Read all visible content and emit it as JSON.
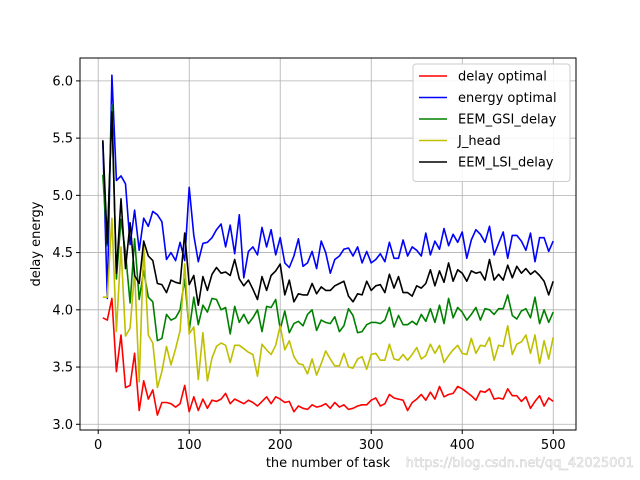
{
  "chart_data": {
    "type": "line",
    "title": "",
    "xlabel": "the number of task",
    "ylabel": "delay energy",
    "xlim": [
      -20,
      525
    ],
    "ylim": [
      2.95,
      6.2
    ],
    "xticks": [
      0,
      100,
      200,
      300,
      400,
      500
    ],
    "yticks": [
      3.0,
      3.5,
      4.0,
      4.5,
      5.0,
      5.5,
      6.0
    ],
    "grid": true,
    "legend_position": "top-right",
    "x": [
      5,
      10,
      15,
      20,
      25,
      30,
      35,
      40,
      45,
      50,
      55,
      60,
      65,
      70,
      75,
      80,
      85,
      90,
      95,
      100,
      105,
      110,
      115,
      120,
      125,
      130,
      135,
      140,
      145,
      150,
      155,
      160,
      165,
      170,
      175,
      180,
      185,
      190,
      195,
      200,
      205,
      210,
      215,
      220,
      225,
      230,
      235,
      240,
      245,
      250,
      255,
      260,
      265,
      270,
      275,
      280,
      285,
      290,
      295,
      300,
      305,
      310,
      315,
      320,
      325,
      330,
      335,
      340,
      345,
      350,
      355,
      360,
      365,
      370,
      375,
      380,
      385,
      390,
      395,
      400,
      405,
      410,
      415,
      420,
      425,
      430,
      435,
      440,
      445,
      450,
      455,
      460,
      465,
      470,
      475,
      480,
      485,
      490,
      495,
      500
    ],
    "series": [
      {
        "name": "delay optimal",
        "color": "#ff0000",
        "values": [
          3.93,
          3.91,
          4.1,
          3.46,
          3.78,
          3.32,
          3.34,
          3.62,
          3.12,
          3.38,
          3.22,
          3.3,
          3.08,
          3.19,
          3.19,
          3.18,
          3.15,
          3.18,
          3.34,
          3.11,
          3.24,
          3.12,
          3.22,
          3.14,
          3.21,
          3.2,
          3.22,
          3.27,
          3.18,
          3.22,
          3.2,
          3.18,
          3.21,
          3.19,
          3.16,
          3.2,
          3.24,
          3.18,
          3.24,
          3.22,
          3.19,
          3.2,
          3.11,
          3.16,
          3.14,
          3.13,
          3.17,
          3.15,
          3.16,
          3.18,
          3.14,
          3.19,
          3.15,
          3.17,
          3.13,
          3.14,
          3.16,
          3.17,
          3.17,
          3.21,
          3.23,
          3.16,
          3.18,
          3.26,
          3.23,
          3.22,
          3.21,
          3.12,
          3.19,
          3.22,
          3.26,
          3.21,
          3.28,
          3.22,
          3.33,
          3.24,
          3.26,
          3.27,
          3.33,
          3.31,
          3.28,
          3.25,
          3.21,
          3.29,
          3.28,
          3.31,
          3.22,
          3.23,
          3.22,
          3.31,
          3.25,
          3.25,
          3.2,
          3.24,
          3.14,
          3.2,
          3.25,
          3.16,
          3.23,
          3.2
        ]
      },
      {
        "name": "energy optimal",
        "color": "#0000ff",
        "values": [
          5.48,
          4.1,
          6.05,
          5.13,
          5.17,
          5.1,
          4.57,
          4.87,
          4.52,
          4.8,
          4.73,
          4.86,
          4.83,
          4.77,
          4.44,
          4.5,
          4.43,
          4.59,
          4.43,
          5.07,
          4.65,
          4.42,
          4.58,
          4.59,
          4.63,
          4.7,
          4.75,
          4.55,
          4.74,
          4.49,
          4.83,
          4.28,
          4.51,
          4.55,
          4.48,
          4.72,
          4.55,
          4.7,
          4.48,
          4.63,
          4.41,
          4.37,
          4.47,
          4.62,
          4.38,
          4.41,
          4.51,
          4.36,
          4.6,
          4.5,
          4.32,
          4.44,
          4.47,
          4.53,
          4.54,
          4.47,
          4.55,
          4.41,
          4.51,
          4.41,
          4.44,
          4.49,
          4.42,
          4.59,
          4.45,
          4.45,
          4.61,
          4.47,
          4.55,
          4.52,
          4.47,
          4.67,
          4.48,
          4.6,
          4.53,
          4.71,
          4.56,
          4.66,
          4.59,
          4.68,
          4.45,
          4.61,
          4.7,
          4.66,
          4.59,
          4.73,
          4.48,
          4.58,
          4.68,
          4.45,
          4.65,
          4.65,
          4.6,
          4.52,
          4.67,
          4.42,
          4.63,
          4.63,
          4.51,
          4.6
        ]
      },
      {
        "name": "EEM_GSI_delay",
        "color": "#008000",
        "values": [
          5.18,
          4.56,
          5.79,
          4.27,
          4.79,
          4.5,
          4.06,
          4.62,
          4.09,
          4.34,
          4.11,
          4.07,
          3.73,
          3.75,
          3.96,
          3.91,
          3.93,
          4.0,
          4.27,
          3.82,
          4.11,
          3.87,
          4.04,
          3.98,
          4.1,
          4.09,
          4.0,
          4.02,
          3.79,
          4.03,
          3.89,
          3.96,
          3.88,
          3.93,
          4.0,
          3.81,
          4.03,
          4.02,
          4.09,
          3.83,
          3.99,
          3.8,
          3.88,
          3.9,
          3.86,
          3.96,
          4.0,
          3.82,
          3.91,
          3.89,
          3.88,
          3.94,
          3.81,
          3.86,
          4.01,
          3.95,
          3.8,
          3.81,
          3.87,
          3.89,
          3.89,
          3.88,
          3.91,
          4.02,
          3.85,
          3.95,
          3.87,
          3.87,
          3.9,
          3.87,
          3.96,
          3.9,
          4.01,
          3.89,
          4.04,
          3.88,
          4.1,
          3.93,
          4.02,
          3.98,
          3.91,
          3.96,
          4.02,
          3.91,
          4.01,
          4.0,
          3.96,
          4.01,
          4.01,
          4.13,
          3.95,
          3.92,
          3.99,
          4.01,
          3.93,
          4.11,
          3.88,
          4.0,
          3.89,
          3.98
        ]
      },
      {
        "name": "J_head",
        "color": "#bfbf00",
        "values": [
          4.11,
          4.11,
          4.8,
          3.81,
          4.55,
          3.77,
          3.84,
          4.34,
          3.37,
          4.56,
          3.78,
          3.71,
          3.32,
          3.46,
          3.68,
          3.52,
          3.66,
          3.82,
          4.4,
          3.79,
          3.85,
          3.39,
          3.8,
          3.38,
          3.58,
          3.68,
          3.71,
          3.69,
          3.54,
          3.69,
          3.69,
          3.66,
          3.63,
          3.61,
          3.42,
          3.7,
          3.65,
          3.61,
          3.69,
          3.86,
          3.65,
          3.73,
          3.59,
          3.53,
          3.52,
          3.44,
          3.57,
          3.43,
          3.53,
          3.64,
          3.57,
          3.51,
          3.51,
          3.62,
          3.5,
          3.49,
          3.57,
          3.59,
          3.48,
          3.61,
          3.62,
          3.56,
          3.56,
          3.7,
          3.57,
          3.56,
          3.61,
          3.56,
          3.61,
          3.67,
          3.57,
          3.6,
          3.7,
          3.62,
          3.69,
          3.54,
          3.6,
          3.65,
          3.69,
          3.62,
          3.61,
          3.75,
          3.62,
          3.69,
          3.68,
          3.76,
          3.56,
          3.69,
          3.68,
          3.86,
          3.61,
          3.7,
          3.72,
          3.78,
          3.62,
          3.78,
          3.53,
          3.73,
          3.57,
          3.76
        ]
      },
      {
        "name": "EEM_LSI_delay",
        "color": "#000000",
        "values": [
          5.48,
          4.58,
          5.73,
          4.32,
          4.97,
          4.36,
          4.76,
          4.3,
          4.23,
          4.6,
          4.47,
          4.43,
          4.23,
          4.22,
          4.15,
          4.26,
          4.24,
          4.23,
          4.67,
          4.22,
          4.3,
          4.04,
          4.29,
          4.17,
          4.31,
          4.37,
          4.32,
          4.33,
          4.3,
          4.44,
          4.27,
          4.21,
          4.26,
          4.18,
          4.09,
          4.29,
          4.17,
          4.3,
          4.34,
          4.4,
          4.13,
          4.26,
          4.07,
          4.14,
          4.13,
          4.13,
          4.23,
          4.14,
          4.2,
          4.17,
          4.17,
          4.21,
          4.23,
          4.25,
          4.12,
          4.07,
          4.14,
          4.13,
          4.25,
          4.17,
          4.21,
          4.22,
          4.15,
          4.31,
          4.19,
          4.29,
          4.15,
          4.15,
          4.12,
          4.21,
          4.19,
          4.23,
          4.35,
          4.21,
          4.34,
          4.24,
          4.41,
          4.25,
          4.35,
          4.32,
          4.25,
          4.34,
          4.32,
          4.33,
          4.26,
          4.44,
          4.26,
          4.31,
          4.26,
          4.39,
          4.28,
          4.38,
          4.32,
          4.36,
          4.31,
          4.34,
          4.3,
          4.25,
          4.13,
          4.25
        ]
      }
    ]
  },
  "watermark": "https://blog.csdn.net/qq_42025001"
}
